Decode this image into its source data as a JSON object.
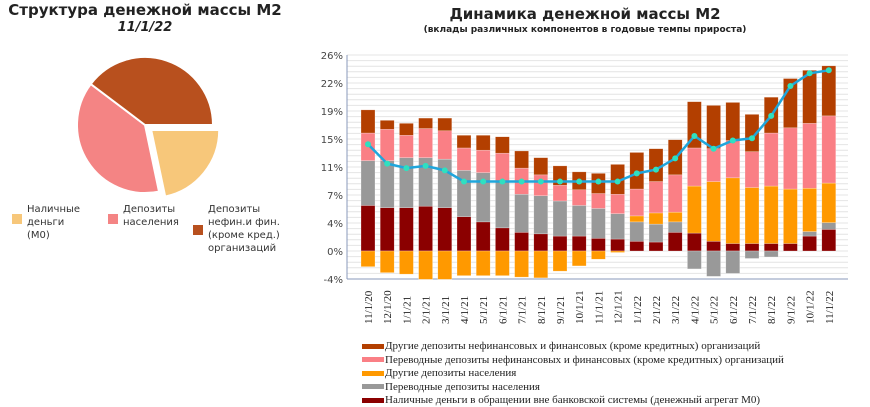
{
  "pie": {
    "title": "Структура денежной массы М2",
    "date": "11/1/22",
    "slices": [
      {
        "label": "Наличные деньги (М0)",
        "lines": [
          "Наличные",
          "деньги",
          "(М0)"
        ],
        "value": 21.7,
        "color": "#f7c77a"
      },
      {
        "label": "Депозиты населения",
        "lines": [
          "Депозиты",
          "населения"
        ],
        "value": 38.6,
        "color": "#f48484"
      },
      {
        "label": "Депозиты нефин.и фин. (кроме кред.) организаций",
        "lines": [
          "Депозиты",
          "нефин.и фин.",
          "(кроме кред.)",
          "организаций"
        ],
        "value": 39.7,
        "color": "#b8501e"
      }
    ]
  },
  "chart_data": {
    "type": "bar",
    "stacked": true,
    "title": "Динамика денежной массы М2",
    "subtitle": "(вклады различных компонентов в годовые темпы прироста)",
    "ylim": [
      -3.75,
      26.25
    ],
    "yticks": [
      "26%",
      "22%",
      "19%",
      "15%",
      "11%",
      "7%",
      "4%",
      "0%",
      "-4%"
    ],
    "categories": [
      "11/1/20",
      "12/1/20",
      "1/1/21",
      "2/1/21",
      "3/1/21",
      "4/1/21",
      "5/1/21",
      "6/1/21",
      "7/1/21",
      "8/1/21",
      "9/1/21",
      "10/1/21",
      "11/1/21",
      "12/1/21",
      "1/1/22",
      "2/1/22",
      "3/1/22",
      "4/1/22",
      "5/1/22",
      "6/1/22",
      "7/1/22",
      "8/1/22",
      "9/1/22",
      "10/1/22",
      "11/1/22"
    ],
    "series": [
      {
        "name": "Наличные деньги в обращении вне банковской системы (денежный агрегат М0)",
        "color": "#8b0000",
        "values": [
          6.1,
          5.8,
          5.8,
          6.0,
          5.8,
          4.6,
          3.9,
          3.1,
          2.5,
          2.3,
          2.0,
          2.0,
          1.7,
          1.6,
          1.3,
          1.2,
          2.5,
          2.4,
          1.3,
          1.0,
          1.0,
          1.0,
          1.0,
          2.0,
          2.9
        ]
      },
      {
        "name": "Переводные депозиты населения",
        "color": "#999999",
        "values": [
          6.0,
          6.3,
          6.7,
          6.5,
          6.5,
          6.2,
          6.6,
          6.2,
          5.1,
          5.1,
          4.7,
          4.1,
          4.0,
          3.4,
          2.6,
          2.4,
          1.4,
          -2.4,
          -3.4,
          -3.0,
          -1.0,
          -0.8,
          0,
          0.6,
          0.9
        ]
      },
      {
        "name": "Другие депозиты населения",
        "color": "#ff9900",
        "values": [
          -2.1,
          -2.9,
          -3.1,
          -3.8,
          -3.8,
          -3.3,
          -3.3,
          -3.3,
          -3.5,
          -3.6,
          -2.7,
          -2.0,
          -1.1,
          -0.2,
          0.8,
          1.5,
          1.3,
          6.3,
          8.0,
          8.8,
          7.5,
          7.7,
          7.3,
          5.8,
          5.3
        ]
      },
      {
        "name": "Переводные депозиты нефинансовых и финансовых (кроме кредитных)  организаций",
        "color": "#fa7f85",
        "values": [
          3.7,
          4.2,
          3.0,
          3.9,
          3.8,
          3.0,
          3.0,
          3.8,
          3.5,
          2.8,
          2.1,
          2.1,
          2.0,
          2.6,
          3.6,
          4.2,
          5.0,
          5.1,
          4.4,
          5.0,
          4.8,
          7.1,
          8.2,
          8.7,
          9.0
        ]
      },
      {
        "name": "Другие депозиты нефинансовых и финансовых (кроме кредитных)  организаций",
        "color": "#b33f00",
        "values": [
          3.1,
          1.2,
          1.6,
          1.4,
          1.7,
          1.7,
          2.0,
          2.2,
          2.3,
          2.3,
          2.6,
          2.4,
          2.7,
          4.0,
          4.9,
          4.4,
          4.7,
          6.2,
          5.8,
          5.1,
          5.0,
          4.8,
          6.6,
          7.1,
          6.7
        ]
      }
    ],
    "line": {
      "name": "M2",
      "color": "#1fa6dc",
      "marker_color": "#2fe0c0",
      "values": [
        14.3,
        11.7,
        11.1,
        11.4,
        10.8,
        9.3,
        9.3,
        9.3,
        9.3,
        9.3,
        9.3,
        9.3,
        9.3,
        9.3,
        10.4,
        10.9,
        12.4,
        15.4,
        13.7,
        14.8,
        15.1,
        18.1,
        22.1,
        23.8,
        24.2
      ]
    },
    "legend_order": [
      4,
      3,
      2,
      1,
      0
    ],
    "legend": "bottom"
  }
}
